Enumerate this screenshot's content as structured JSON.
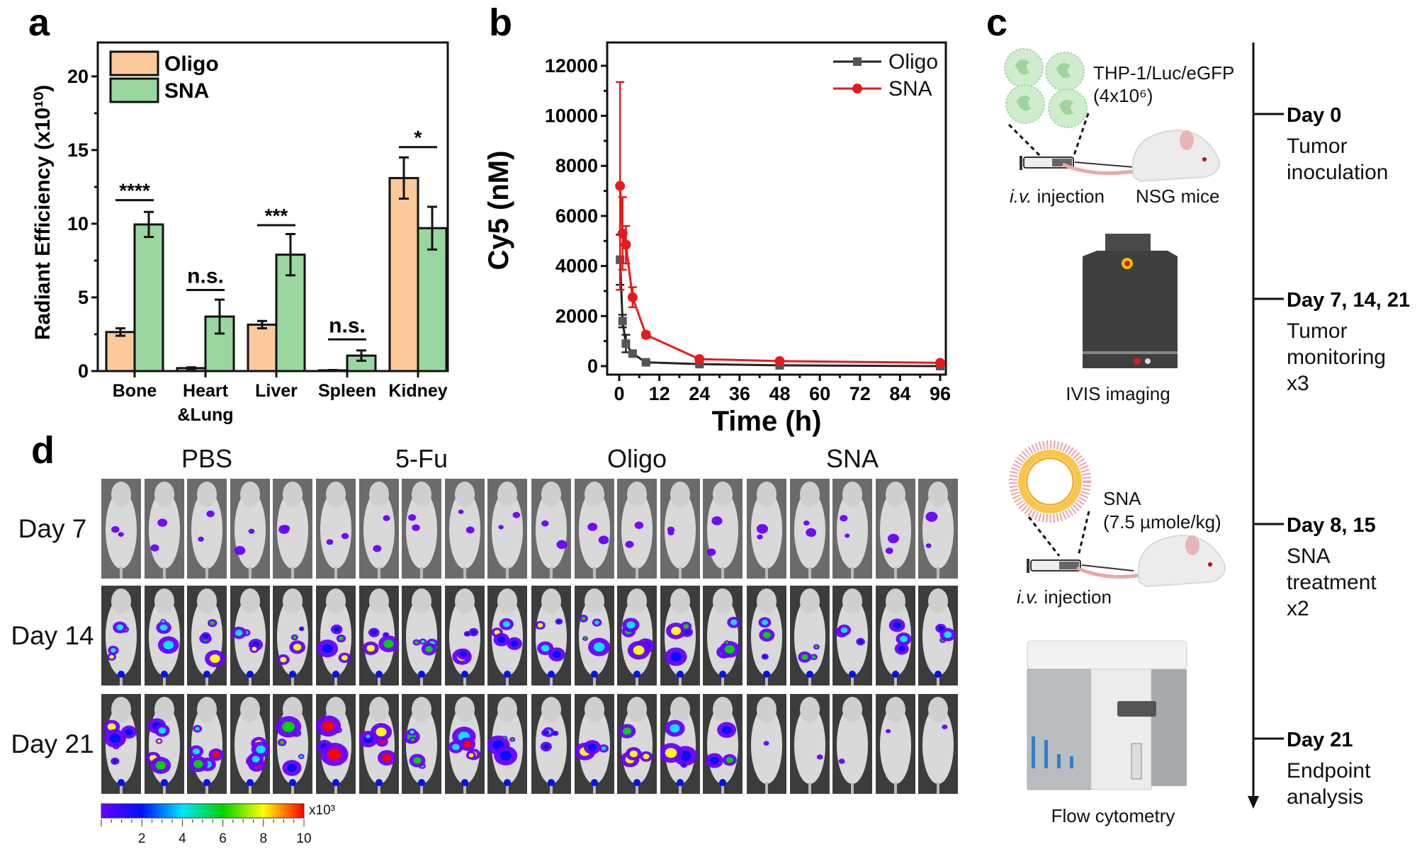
{
  "panels": {
    "a": "a",
    "b": "b",
    "c": "c",
    "d": "d"
  },
  "chart_data": [
    {
      "type": "bar",
      "panel": "a",
      "categories": [
        "Bone",
        "Heart\n&Lung",
        "Liver",
        "Spleen",
        "Kidney"
      ],
      "category_lines": [
        [
          "Bone"
        ],
        [
          "Heart",
          "&Lung"
        ],
        [
          "Liver"
        ],
        [
          "Spleen"
        ],
        [
          "Kidney"
        ]
      ],
      "ylabel": "Radiant Efficiency (x10¹⁰)",
      "ylim": [
        0,
        22.3
      ],
      "yticks": [
        "0",
        "5",
        "10",
        "15",
        "20"
      ],
      "series": [
        {
          "name": "Oligo",
          "color": "#fbc99a",
          "values": [
            2.65,
            0.2,
            3.15,
            0.05,
            13.1
          ],
          "errors": [
            0.25,
            0.05,
            0.25,
            0.02,
            1.4
          ]
        },
        {
          "name": "SNA",
          "color": "#9ad7a0",
          "values": [
            9.95,
            3.7,
            7.9,
            1.05,
            9.7
          ],
          "errors": [
            0.85,
            1.15,
            1.4,
            0.35,
            1.45
          ]
        }
      ],
      "significance": [
        "****",
        "n.s.",
        "***",
        "n.s.",
        "*"
      ],
      "legend_position": "top-left",
      "grid": false
    },
    {
      "type": "line",
      "panel": "b",
      "xlabel": "Time (h)",
      "ylabel": "Cy5 (nM)",
      "xlim": [
        -3.6,
        97.7
      ],
      "ylim": [
        -340,
        12930
      ],
      "xticks": [
        "0",
        "12",
        "24",
        "36",
        "48",
        "60",
        "72",
        "84",
        "96"
      ],
      "yticks": [
        "0",
        "2000",
        "4000",
        "6000",
        "8000",
        "10000",
        "12000"
      ],
      "x": [
        0.25,
        1,
        2,
        4,
        8,
        24,
        48,
        96
      ],
      "series": [
        {
          "name": "Oligo",
          "color": "#222222",
          "marker": "square",
          "values": [
            4250,
            1800,
            900,
            500,
            150,
            80,
            30,
            0
          ],
          "errors": [
            1000,
            250,
            350,
            80,
            60,
            30,
            20,
            20
          ]
        },
        {
          "name": "SNA",
          "color": "#e8191c",
          "marker": "circle",
          "values": [
            7200,
            5300,
            4850,
            2750,
            1250,
            280,
            200,
            130
          ],
          "errors": [
            4150,
            1450,
            750,
            400,
            120,
            60,
            50,
            50
          ]
        }
      ],
      "legend_position": "top-right",
      "grid": false
    }
  ],
  "schematic": {
    "cells_label": "THP-1/Luc/eGFP",
    "cells_count": "(4x10⁶)",
    "injection_italic": "i.v.",
    "injection_text": " injection",
    "mice_label": "NSG mice",
    "ivis_label": "IVIS imaging",
    "sna_label": "SNA",
    "sna_dose": "(7.5 µmole/kg)",
    "flow_label": "Flow cytometry",
    "timeline": [
      {
        "day": "Day 0",
        "lines": [
          "Tumor",
          "inoculation"
        ]
      },
      {
        "day": "Day 7, 14, 21",
        "lines": [
          "Tumor",
          "monitoring",
          "x3"
        ]
      },
      {
        "day": "Day 8, 15",
        "lines": [
          "SNA",
          "treatment",
          "x2"
        ]
      },
      {
        "day": "Day 21",
        "lines": [
          "Endpoint",
          "analysis"
        ]
      }
    ]
  },
  "imaging": {
    "groups": [
      "PBS",
      "5-Fu",
      "Oligo",
      "SNA"
    ],
    "rows": [
      "Day 7",
      "Day 14",
      "Day 21"
    ],
    "mice_per_group": 5,
    "colorbar": {
      "unit": "x10³",
      "ticks": [
        "2",
        "4",
        "6",
        "8",
        "10"
      ],
      "range": [
        0,
        10
      ],
      "colors": [
        "#6a00ff",
        "#0010ff",
        "#00e5ff",
        "#00d000",
        "#ffff00",
        "#ff0000"
      ]
    }
  }
}
